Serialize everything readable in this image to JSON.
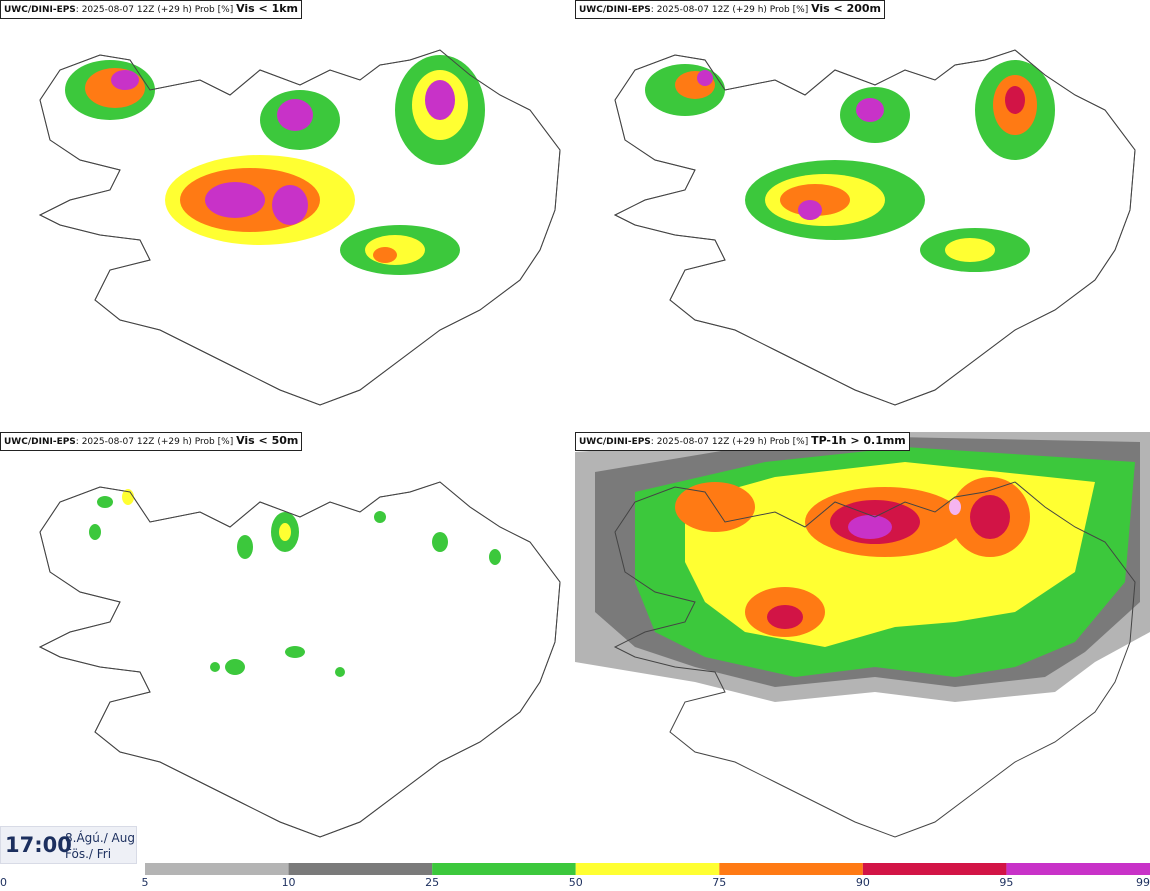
{
  "panels": [
    {
      "model": "UWC/DINI-EPS",
      "run_info": ": 2025-08-07 12Z (+29 h) Prob [%] ",
      "param": "Vis < 1km"
    },
    {
      "model": "UWC/DINI-EPS",
      "run_info": ": 2025-08-07 12Z (+29 h) Prob [%] ",
      "param": "Vis < 200m"
    },
    {
      "model": "UWC/DINI-EPS",
      "run_info": ": 2025-08-07 12Z (+29 h) Prob [%] ",
      "param": "Vis < 50m"
    },
    {
      "model": "UWC/DINI-EPS",
      "run_info": ": 2025-08-07 12Z (+29 h) Prob [%] ",
      "param": "TP-1h > 0.1mm"
    }
  ],
  "valid_time": {
    "time": "17:00",
    "date_line1": "8.Ágú./ Aug",
    "date_line2": "Fös./ Fri"
  },
  "legend": {
    "ticks": [
      "0",
      "5",
      "10",
      "25",
      "50",
      "75",
      "90",
      "95",
      "99"
    ],
    "colors": [
      "#ffffff",
      "#b4b4b4",
      "#7a7a7a",
      "#3cc83c",
      "#ffff32",
      "#ff7a14",
      "#d21446",
      "#c832c8",
      "#f5b4f0"
    ]
  }
}
